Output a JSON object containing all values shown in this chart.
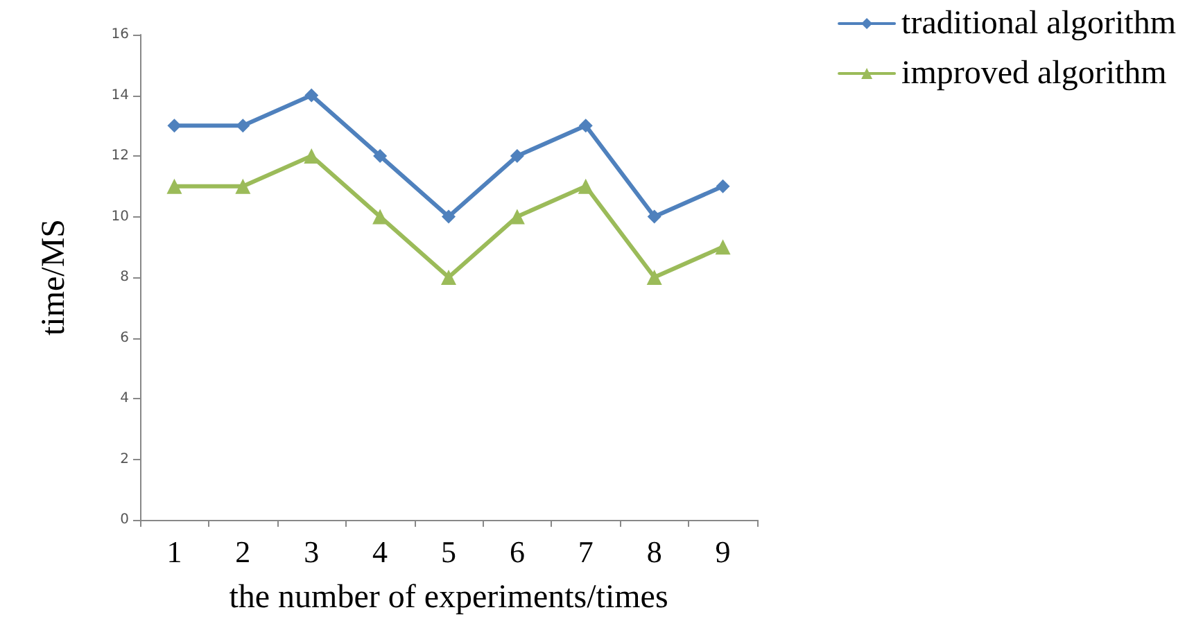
{
  "chart_data": {
    "type": "line",
    "xlabel": "the number of experiments/times",
    "ylabel": "time/MS",
    "categories": [
      "1",
      "2",
      "3",
      "4",
      "5",
      "6",
      "7",
      "8",
      "9"
    ],
    "series": [
      {
        "name": "traditional algorithm",
        "color": "#4f81bd",
        "marker": "diamond",
        "values": [
          13,
          13,
          14,
          12,
          10,
          12,
          13,
          10,
          11
        ]
      },
      {
        "name": "improved algorithm",
        "color": "#9bbb59",
        "marker": "triangle",
        "values": [
          11,
          11,
          12,
          10,
          8,
          10,
          11,
          8,
          9
        ]
      }
    ],
    "ylim": [
      0,
      16
    ],
    "yticks": [
      0,
      2,
      4,
      6,
      8,
      10,
      12,
      14,
      16
    ],
    "grid": false,
    "legend": "top right",
    "line_style": "solid"
  }
}
